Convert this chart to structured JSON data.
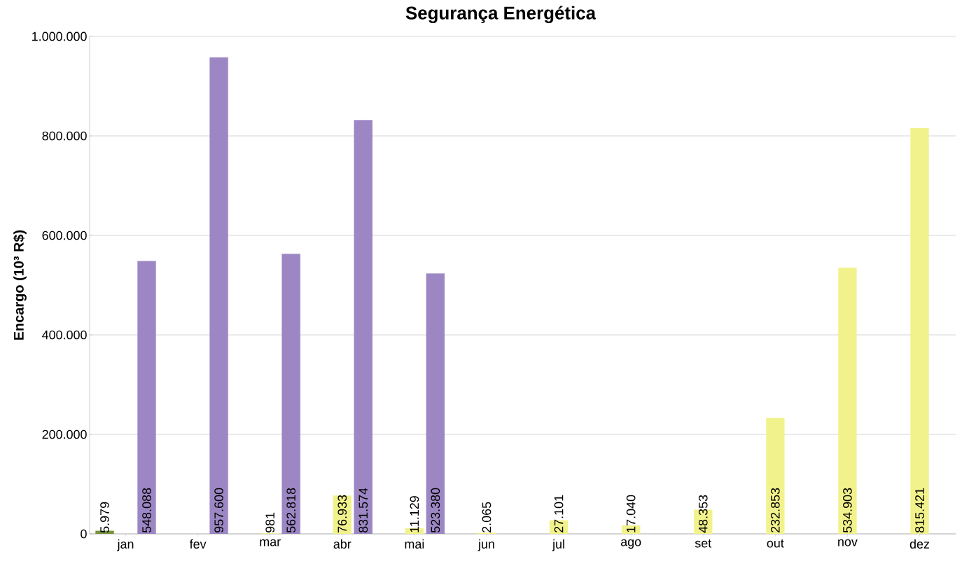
{
  "chart_data": {
    "type": "bar",
    "title": "Segurança Energética",
    "ylabel": "Encargo (10³ R$)",
    "categories": [
      "jan",
      "fev",
      "mar",
      "abr",
      "mai",
      "jun",
      "jul",
      "ago",
      "set",
      "out",
      "nov",
      "dez"
    ],
    "series": [
      {
        "color": "#77933c",
        "values": [
          5979,
          null,
          null,
          null,
          null,
          null,
          null,
          null,
          null,
          null,
          null,
          null
        ],
        "value_labels": [
          "5.979",
          null,
          null,
          null,
          null,
          null,
          null,
          null,
          null,
          null,
          null,
          null
        ]
      },
      {
        "color": "#f2f28c",
        "values": [
          null,
          null,
          981,
          76933,
          11129,
          2065,
          27101,
          17040,
          48353,
          232853,
          534903,
          815421
        ],
        "value_labels": [
          null,
          null,
          "981",
          "76.933",
          "11.129",
          "2.065",
          "27.101",
          "17.040",
          "48.353",
          "232.853",
          "534.903",
          "815.421"
        ]
      },
      {
        "color": "#9c87c4",
        "values": [
          548088,
          957600,
          562818,
          831574,
          523380,
          null,
          null,
          null,
          null,
          null,
          null,
          null
        ],
        "value_labels": [
          "548.088",
          "957.600",
          "562.818",
          "831.574",
          "523.380",
          null,
          null,
          null,
          null,
          null,
          null,
          null
        ]
      }
    ],
    "ylim": [
      0,
      1000000
    ],
    "yticks": [
      0,
      {
        "value": 200000,
        "label": "200.000"
      },
      {
        "value": 400000,
        "label": "400.000"
      },
      {
        "value": 600000,
        "label": "600.000"
      },
      {
        "value": 800000,
        "label": "800.000"
      },
      {
        "value": 1000000,
        "label": "1.000.000"
      }
    ],
    "grid": "y"
  }
}
